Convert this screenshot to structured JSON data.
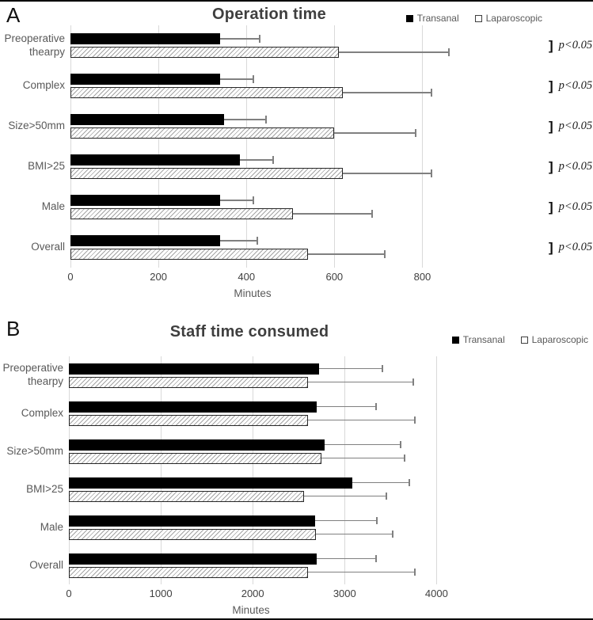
{
  "colors": {
    "bar_solid": "#000000",
    "hatch_line": "#a3a3a3",
    "hatch_border": "#262626",
    "error_bar": "#808080",
    "grid": "#d9d9d9",
    "label_text": "#595959",
    "title_text": "#3f3f3f"
  },
  "chart_data": [
    {
      "type": "bar",
      "orientation": "horizontal",
      "panel_label": "A",
      "title": "Operation time",
      "xlabel": "Minutes",
      "grid": true,
      "legend_position": "top-right",
      "categories": [
        "Preoperative thearpy",
        "Complex",
        "Size>50mm",
        "BMI>25",
        "Male",
        "Overall"
      ],
      "series": [
        {
          "name": "Transanal",
          "fill": "solid-black",
          "values": [
            340,
            340,
            350,
            385,
            340,
            340
          ],
          "error_upper": [
            430,
            415,
            445,
            460,
            415,
            425
          ]
        },
        {
          "name": "Laparoscopic",
          "fill": "white-hatched",
          "values": [
            610,
            620,
            600,
            620,
            505,
            540
          ],
          "error_upper": [
            860,
            820,
            785,
            820,
            685,
            715
          ]
        }
      ],
      "axis": {
        "min": 0,
        "ticks": [
          0,
          200,
          400,
          600,
          800
        ],
        "display_max": 900
      },
      "p_labels": [
        "p<0.05",
        "p<0.05",
        "p<0.05",
        "p<0.05",
        "p<0.05",
        "p<0.05"
      ]
    },
    {
      "type": "bar",
      "orientation": "horizontal",
      "panel_label": "B",
      "title": "Staff time consumed",
      "xlabel": "Minutes",
      "grid": true,
      "legend_position": "top-right",
      "categories": [
        "Preoperative thearpy",
        "Complex",
        "Size>50mm",
        "BMI>25",
        "Male",
        "Overall"
      ],
      "series": [
        {
          "name": "Transanal",
          "fill": "solid-black",
          "values": [
            2720,
            2700,
            2780,
            3080,
            2680,
            2700
          ],
          "error_upper": [
            3410,
            3340,
            3610,
            3700,
            3350,
            3340
          ]
        },
        {
          "name": "Laparoscopic",
          "fill": "white-hatched",
          "values": [
            2600,
            2600,
            2750,
            2560,
            2690,
            2600
          ],
          "error_upper": [
            3750,
            3760,
            3650,
            3450,
            3520,
            3760
          ]
        }
      ],
      "axis": {
        "min": 0,
        "ticks": [
          0,
          1000,
          2000,
          3000,
          4000
        ],
        "display_max": 4100
      },
      "p_labels": null
    }
  ]
}
